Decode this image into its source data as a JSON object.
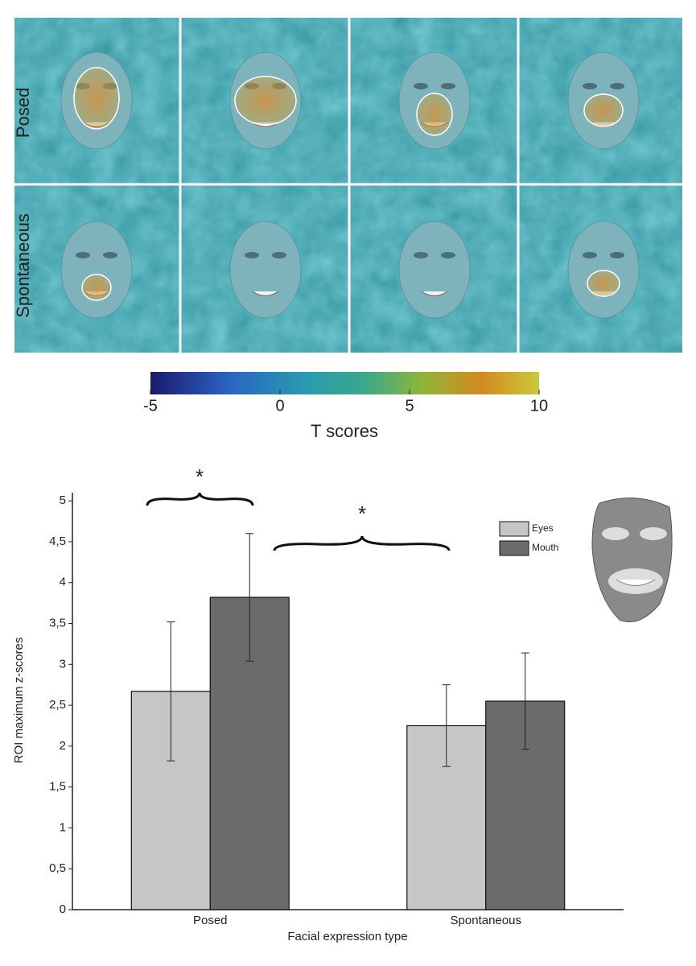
{
  "heatmap": {
    "row_labels": [
      "Posed",
      "Spontaneous"
    ],
    "colorbar": {
      "label": "T scores",
      "lim": [
        -5,
        10
      ],
      "ticks": [
        -5,
        0,
        5,
        10
      ]
    }
  },
  "chart_data": {
    "type": "bar",
    "categories": [
      "Posed",
      "Spontaneous"
    ],
    "series": [
      {
        "name": "Eyes",
        "color": "#c6c6c6",
        "values": [
          2.67,
          2.25
        ],
        "errors": [
          0.85,
          0.5
        ]
      },
      {
        "name": "Mouth",
        "color": "#6b6b6b",
        "values": [
          3.82,
          2.55
        ],
        "errors": [
          0.78,
          0.59
        ]
      }
    ],
    "ylim": [
      0,
      5.1
    ],
    "yticks": [
      0,
      {
        "value": 0.5,
        "label": "0,5"
      },
      1,
      {
        "value": 1.5,
        "label": "1,5"
      },
      2,
      {
        "value": 2.5,
        "label": "2,5"
      },
      3,
      {
        "value": 3.5,
        "label": "3,5"
      },
      4,
      {
        "value": 4.5,
        "label": "4,5"
      },
      5
    ],
    "xlabel": "Facial expression type",
    "ylabel": "ROI maximum z-scores",
    "annotations": [
      "*",
      "*"
    ],
    "grid": false
  }
}
